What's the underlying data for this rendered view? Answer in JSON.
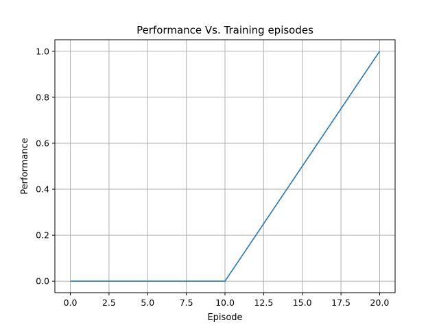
{
  "chart_data": {
    "type": "line",
    "title": "Performance Vs. Training episodes",
    "xlabel": "Episode",
    "ylabel": "Performance",
    "xlim": [
      -1,
      21
    ],
    "ylim": [
      -0.05,
      1.05
    ],
    "xticks": [
      0.0,
      2.5,
      5.0,
      7.5,
      10.0,
      12.5,
      15.0,
      17.5,
      20.0
    ],
    "xtick_labels": [
      "0.0",
      "2.5",
      "5.0",
      "7.5",
      "10.0",
      "12.5",
      "15.0",
      "17.5",
      "20.0"
    ],
    "yticks": [
      0.0,
      0.2,
      0.4,
      0.6,
      0.8,
      1.0
    ],
    "ytick_labels": [
      "0.0",
      "0.2",
      "0.4",
      "0.6",
      "0.8",
      "1.0"
    ],
    "grid": true,
    "series": [
      {
        "x": [
          0,
          1,
          2,
          3,
          4,
          5,
          6,
          7,
          8,
          9,
          10,
          11,
          12,
          13,
          14,
          15,
          16,
          17,
          18,
          19,
          20
        ],
        "values": [
          0,
          0,
          0,
          0,
          0,
          0,
          0,
          0,
          0,
          0,
          0,
          0.1,
          0.2,
          0.3,
          0.4,
          0.5,
          0.6,
          0.7,
          0.8,
          0.9,
          1.0
        ],
        "color": "#1f77b4"
      }
    ]
  }
}
